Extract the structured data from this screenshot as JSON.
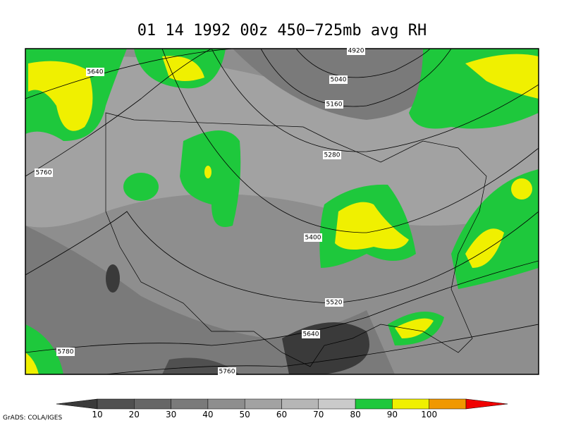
{
  "title": "01 14 1992 00z 450−725mb avg RH",
  "contour_labels": [
    "5640",
    "4920",
    "5040",
    "5160",
    "5280",
    "5760",
    "5400",
    "5520",
    "5640",
    "5780",
    "5760"
  ],
  "colorbar": {
    "colors": [
      "#3a3a3a",
      "#505050",
      "#666666",
      "#7a7a7a",
      "#8e8e8e",
      "#a2a2a2",
      "#b6b6b6",
      "#cacaca",
      "#1ec83c",
      "#f0f000",
      "#f09800",
      "#f00000"
    ],
    "labels": [
      10,
      20,
      30,
      40,
      50,
      60,
      70,
      80,
      90,
      100
    ]
  },
  "credit": "GrADS: COLA/IGES"
}
